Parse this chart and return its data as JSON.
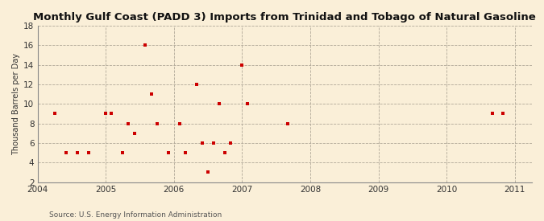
{
  "title": "Monthly Gulf Coast (PADD 3) Imports from Trinidad and Tobago of Natural Gasoline",
  "ylabel": "Thousand Barrels per Day",
  "source": "Source: U.S. Energy Information Administration",
  "background_color": "#faefd8",
  "marker_color": "#cc0000",
  "xlim": [
    2004.0,
    2011.25
  ],
  "ylim": [
    2,
    18
  ],
  "yticks": [
    2,
    4,
    6,
    8,
    10,
    12,
    14,
    16,
    18
  ],
  "xticks": [
    2004,
    2005,
    2006,
    2007,
    2008,
    2009,
    2010,
    2011
  ],
  "data_x": [
    2004.25,
    2004.42,
    2004.58,
    2004.75,
    2005.0,
    2005.08,
    2005.25,
    2005.33,
    2005.42,
    2005.58,
    2005.67,
    2005.75,
    2005.92,
    2006.08,
    2006.17,
    2006.33,
    2006.42,
    2006.5,
    2006.58,
    2006.67,
    2006.75,
    2006.83,
    2007.0,
    2007.08,
    2007.67,
    2010.67,
    2010.83
  ],
  "data_y": [
    9,
    5,
    5,
    5,
    9,
    9,
    5,
    8,
    7,
    16,
    11,
    8,
    5,
    8,
    5,
    12,
    6,
    3,
    6,
    10,
    5,
    6,
    14,
    10,
    8,
    9,
    9
  ]
}
